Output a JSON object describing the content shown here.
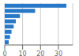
{
  "chart_data": {
    "type": "bar",
    "orientation": "horizontal",
    "categories": [
      null,
      null,
      null,
      null,
      null,
      null,
      null,
      null
    ],
    "values": [
      34.5,
      17.0,
      8.5,
      6.2,
      5.0,
      3.8,
      3.0,
      2.2
    ],
    "color": "#2878c8",
    "xlim": [
      0,
      38
    ],
    "xticks": [
      0,
      10,
      20,
      30
    ],
    "grid": true
  }
}
